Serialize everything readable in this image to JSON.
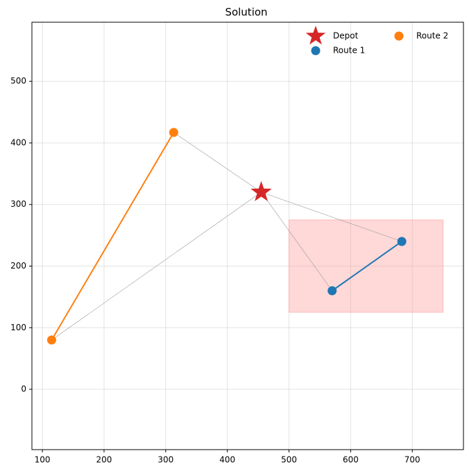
{
  "chart_data": {
    "type": "scatter",
    "title": "Solution",
    "xlim": [
      83,
      783
    ],
    "ylim": [
      -98,
      596
    ],
    "xticks": [
      100,
      200,
      300,
      400,
      500,
      600,
      700
    ],
    "yticks": [
      0,
      100,
      200,
      300,
      400,
      500
    ],
    "grid": true,
    "legend": "upper right",
    "depot": {
      "name": "Depot",
      "color": "#d62728",
      "x": 455,
      "y": 320
    },
    "series": [
      {
        "name": "Route 1",
        "color": "#1f77b4",
        "x": [
          570,
          683
        ],
        "y": [
          160,
          240
        ]
      },
      {
        "name": "Route 2",
        "color": "#ff7f0e",
        "x": [
          115,
          313
        ],
        "y": [
          80,
          417
        ]
      }
    ],
    "region": {
      "color": "#ff9999",
      "x": [
        500,
        750
      ],
      "y": [
        125,
        275
      ]
    }
  }
}
